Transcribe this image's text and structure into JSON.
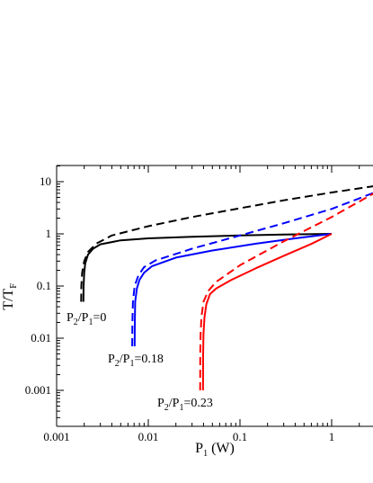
{
  "chart_data": {
    "type": "line",
    "xscale": "log",
    "yscale": "log",
    "xlim": [
      0.001,
      3
    ],
    "ylim": [
      0.0003,
      16
    ],
    "xlabel": {
      "main": "P",
      "sub": "1",
      "tail": " (W)"
    },
    "ylabel": {
      "main": "T/T",
      "sub": "F"
    },
    "xticks": [
      {
        "value": 0.001,
        "label": "0.001"
      },
      {
        "value": 0.01,
        "label": "0.01"
      },
      {
        "value": 0.1,
        "label": "0.1"
      },
      {
        "value": 1,
        "label": "1"
      }
    ],
    "yticks": [
      {
        "value": 10,
        "label": "10"
      },
      {
        "value": 1,
        "label": "1"
      },
      {
        "value": 0.1,
        "label": "0.1"
      },
      {
        "value": 0.01,
        "label": "0.01"
      },
      {
        "value": 0.001,
        "label": "0.001"
      }
    ],
    "series": [
      {
        "color": "#000000",
        "style": "solid",
        "group": "P2/P1=0",
        "x": [
          0.00196,
          0.00197,
          0.002,
          0.00205,
          0.0022,
          0.0025,
          0.003,
          0.005,
          0.01,
          0.03,
          0.1,
          0.3,
          1.0
        ],
        "y": [
          0.05,
          0.1,
          0.18,
          0.27,
          0.4,
          0.52,
          0.63,
          0.75,
          0.82,
          0.88,
          0.93,
          0.97,
          1.0
        ]
      },
      {
        "color": "#000000",
        "style": "dashed",
        "group": "P2/P1=0",
        "x": [
          0.00185,
          0.00186,
          0.0019,
          0.002,
          0.0022,
          0.0027,
          0.004,
          0.01,
          0.03,
          0.1,
          0.3,
          1.0,
          3.0
        ],
        "y": [
          0.05,
          0.1,
          0.18,
          0.3,
          0.45,
          0.65,
          0.93,
          1.4,
          2.1,
          3.1,
          4.4,
          6.2,
          8.3
        ]
      },
      {
        "color": "#0000ff",
        "style": "solid",
        "group": "P2/P1=0.18",
        "x": [
          0.0071,
          0.00712,
          0.0072,
          0.0075,
          0.008,
          0.009,
          0.011,
          0.02,
          0.05,
          0.15,
          0.4,
          1.0
        ],
        "y": [
          0.007,
          0.02,
          0.05,
          0.09,
          0.13,
          0.18,
          0.24,
          0.35,
          0.48,
          0.65,
          0.82,
          1.0
        ]
      },
      {
        "color": "#0000ff",
        "style": "dashed",
        "group": "P2/P1=0.18",
        "x": [
          0.00668,
          0.0067,
          0.0068,
          0.0071,
          0.0078,
          0.009,
          0.012,
          0.03,
          0.1,
          0.3,
          1.0,
          3.0
        ],
        "y": [
          0.007,
          0.02,
          0.05,
          0.1,
          0.16,
          0.23,
          0.31,
          0.52,
          0.93,
          1.6,
          3.0,
          6.3
        ]
      },
      {
        "color": "#ff0000",
        "style": "solid",
        "group": "P2/P1=0.23",
        "x": [
          0.0395,
          0.0396,
          0.04,
          0.041,
          0.043,
          0.047,
          0.055,
          0.08,
          0.15,
          0.3,
          0.6,
          1.0
        ],
        "y": [
          0.001,
          0.005,
          0.012,
          0.025,
          0.045,
          0.07,
          0.09,
          0.13,
          0.22,
          0.38,
          0.64,
          1.0
        ]
      },
      {
        "color": "#ff0000",
        "style": "dashed",
        "group": "P2/P1=0.23",
        "x": [
          0.0368,
          0.0369,
          0.0372,
          0.038,
          0.04,
          0.045,
          0.055,
          0.1,
          0.3,
          1.0,
          3.0
        ],
        "y": [
          0.001,
          0.005,
          0.012,
          0.025,
          0.05,
          0.08,
          0.12,
          0.25,
          0.72,
          2.1,
          6.2
        ]
      }
    ],
    "annotations": [
      {
        "name": "annotation-p2p1-0",
        "parts": [
          "P",
          "2",
          "/P",
          "1",
          "=0"
        ]
      },
      {
        "name": "annotation-p2p1-018",
        "parts": [
          "P",
          "2",
          "/P",
          "1",
          "=0.18"
        ]
      },
      {
        "name": "annotation-p2p1-023",
        "parts": [
          "P",
          "2",
          "/P",
          "1",
          "=0.23"
        ]
      }
    ],
    "grid": false,
    "legend": "none"
  }
}
